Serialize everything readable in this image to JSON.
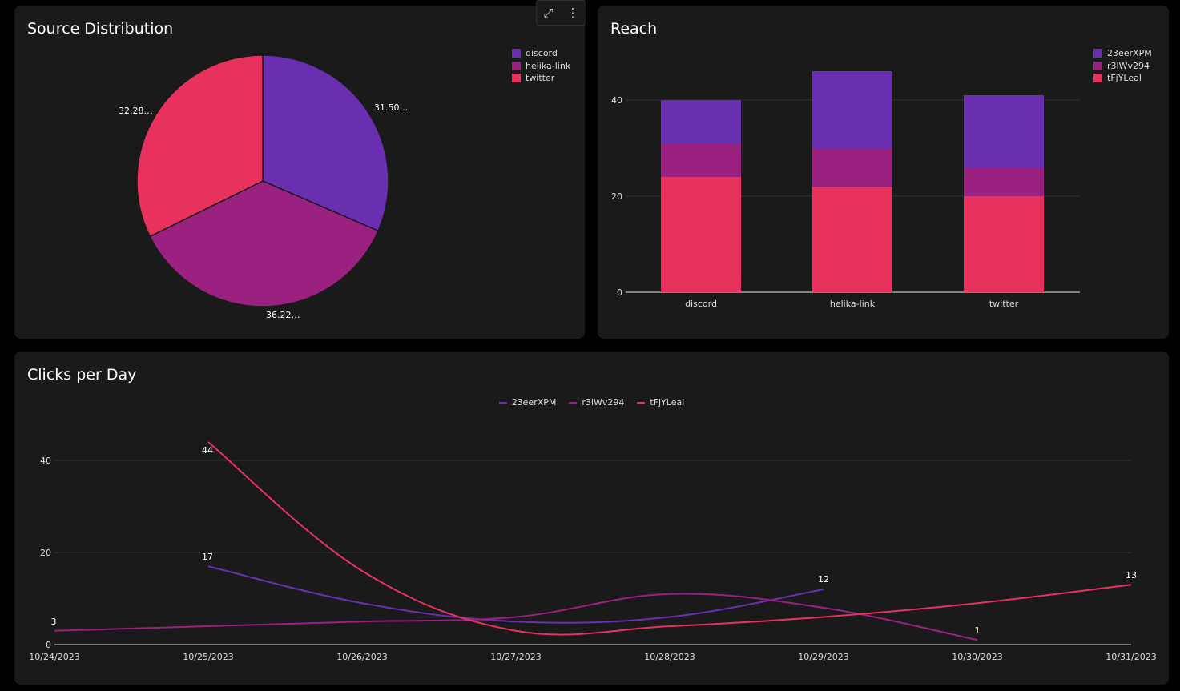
{
  "toolbar": {
    "expand_icon": "expand-icon",
    "more_icon": "more-vertical-icon"
  },
  "colors": {
    "series1": "#6a2fb0",
    "series2": "#9b2181",
    "series3": "#e9315e",
    "panel_bg": "#1a1a1a"
  },
  "pie": {
    "title": "Source Distribution",
    "legend": [
      "discord",
      "helika-link",
      "twitter"
    ],
    "slice_labels": [
      "31.50…",
      "36.22…",
      "32.28…"
    ]
  },
  "bar": {
    "title": "Reach",
    "legend": [
      "23eerXPM",
      "r3lWv294",
      "tFjYLeal"
    ],
    "y_ticks": [
      "0",
      "20",
      "40"
    ],
    "categories": [
      "discord",
      "helika-link",
      "twitter"
    ]
  },
  "line": {
    "title": "Clicks per Day",
    "legend": [
      "23eerXPM",
      "r3lWv294",
      "tFjYLeal"
    ],
    "y_ticks": [
      "0",
      "20",
      "40"
    ],
    "x_ticks": [
      "10/24/2023",
      "10/25/2023",
      "10/26/2023",
      "10/27/2023",
      "10/28/2023",
      "10/29/2023",
      "10/30/2023",
      "10/31/2023"
    ],
    "point_labels": [
      "3",
      "44",
      "17",
      "12",
      "1",
      "13"
    ]
  },
  "chart_data": [
    {
      "type": "pie",
      "title": "Source Distribution",
      "categories": [
        "discord",
        "helika-link",
        "twitter"
      ],
      "values": [
        31.5,
        36.22,
        32.28
      ],
      "legend_position": "top-right"
    },
    {
      "type": "bar",
      "stacked": true,
      "title": "Reach",
      "categories": [
        "discord",
        "helika-link",
        "twitter"
      ],
      "series": [
        {
          "name": "tFjYLeal",
          "values": [
            24,
            22,
            20
          ]
        },
        {
          "name": "r3lWv294",
          "values": [
            7,
            8,
            6
          ]
        },
        {
          "name": "23eerXPM",
          "values": [
            9,
            16,
            15
          ]
        }
      ],
      "ylim": [
        0,
        47
      ],
      "grid": true,
      "legend_position": "top-right"
    },
    {
      "type": "line",
      "title": "Clicks per Day",
      "x": [
        "10/24/2023",
        "10/25/2023",
        "10/26/2023",
        "10/27/2023",
        "10/28/2023",
        "10/29/2023",
        "10/30/2023",
        "10/31/2023"
      ],
      "series": [
        {
          "name": "23eerXPM",
          "values": [
            null,
            17,
            9,
            5,
            6,
            12,
            null,
            null
          ]
        },
        {
          "name": "r3lWv294",
          "values": [
            3,
            4,
            5,
            6,
            11,
            8,
            1,
            null
          ]
        },
        {
          "name": "tFjYLeal",
          "values": [
            null,
            44,
            16,
            3,
            4,
            6,
            9,
            13
          ]
        }
      ],
      "ylim": [
        0,
        48
      ],
      "grid": true,
      "legend_position": "top"
    }
  ]
}
